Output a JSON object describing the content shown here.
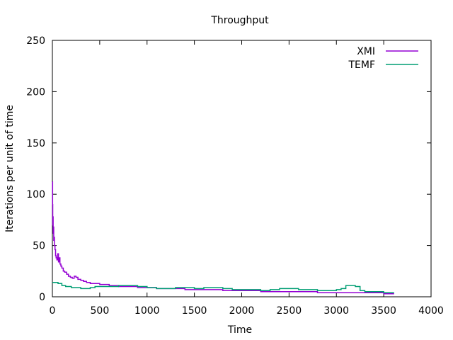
{
  "chart_data": {
    "type": "line",
    "title": "Throughput",
    "xlabel": "Time",
    "ylabel": "Iterations per unit of time",
    "xlim": [
      0,
      4000
    ],
    "ylim": [
      0,
      250
    ],
    "xticks": [
      0,
      500,
      1000,
      1500,
      2000,
      2500,
      3000,
      3500,
      4000
    ],
    "yticks": [
      0,
      50,
      100,
      150,
      200,
      250
    ],
    "grid": false,
    "legend_position": "top-right",
    "series": [
      {
        "name": "XMI",
        "color": "#9400d3",
        "x": [
          0,
          2,
          4,
          6,
          8,
          10,
          14,
          18,
          22,
          28,
          34,
          40,
          48,
          56,
          64,
          72,
          80,
          90,
          100,
          115,
          130,
          150,
          170,
          190,
          210,
          230,
          250,
          270,
          300,
          330,
          360,
          400,
          450,
          500,
          550,
          600,
          700,
          800,
          900,
          1000,
          1100,
          1200,
          1300,
          1400,
          1500,
          1600,
          1700,
          1800,
          1900,
          2000,
          2100,
          2200,
          2300,
          2400,
          2500,
          2600,
          2700,
          2800,
          2900,
          3000,
          3100,
          3200,
          3300,
          3400,
          3500,
          3610
        ],
        "y": [
          112,
          90,
          70,
          78,
          62,
          68,
          55,
          58,
          50,
          46,
          40,
          38,
          36,
          42,
          34,
          38,
          32,
          30,
          28,
          25,
          24,
          22,
          20,
          19,
          18,
          20,
          19,
          17,
          16,
          15,
          14,
          13,
          13,
          12,
          12,
          11,
          10,
          10,
          9,
          9,
          8,
          8,
          8,
          7,
          7,
          7,
          7,
          6,
          6,
          6,
          6,
          5,
          5,
          5,
          5,
          5,
          5,
          4,
          4,
          4,
          4,
          4,
          4,
          4,
          3,
          3
        ]
      },
      {
        "name": "TEMF",
        "color": "#009e73",
        "x": [
          0,
          20,
          60,
          100,
          140,
          200,
          300,
          400,
          450,
          600,
          700,
          800,
          900,
          1000,
          1100,
          1200,
          1300,
          1400,
          1500,
          1600,
          1700,
          1800,
          1900,
          2000,
          2100,
          2200,
          2300,
          2400,
          2500,
          2600,
          2700,
          2800,
          2900,
          3000,
          3050,
          3100,
          3150,
          3200,
          3250,
          3300,
          3400,
          3500,
          3610
        ],
        "y": [
          14,
          14,
          13,
          11,
          10,
          9,
          8,
          9,
          10,
          10,
          11,
          11,
          10,
          9,
          8,
          8,
          9,
          9,
          8,
          9,
          9,
          8,
          7,
          7,
          7,
          6,
          7,
          8,
          8,
          7,
          7,
          6,
          6,
          7,
          8,
          11,
          11,
          10,
          6,
          5,
          5,
          4,
          4
        ]
      }
    ]
  }
}
